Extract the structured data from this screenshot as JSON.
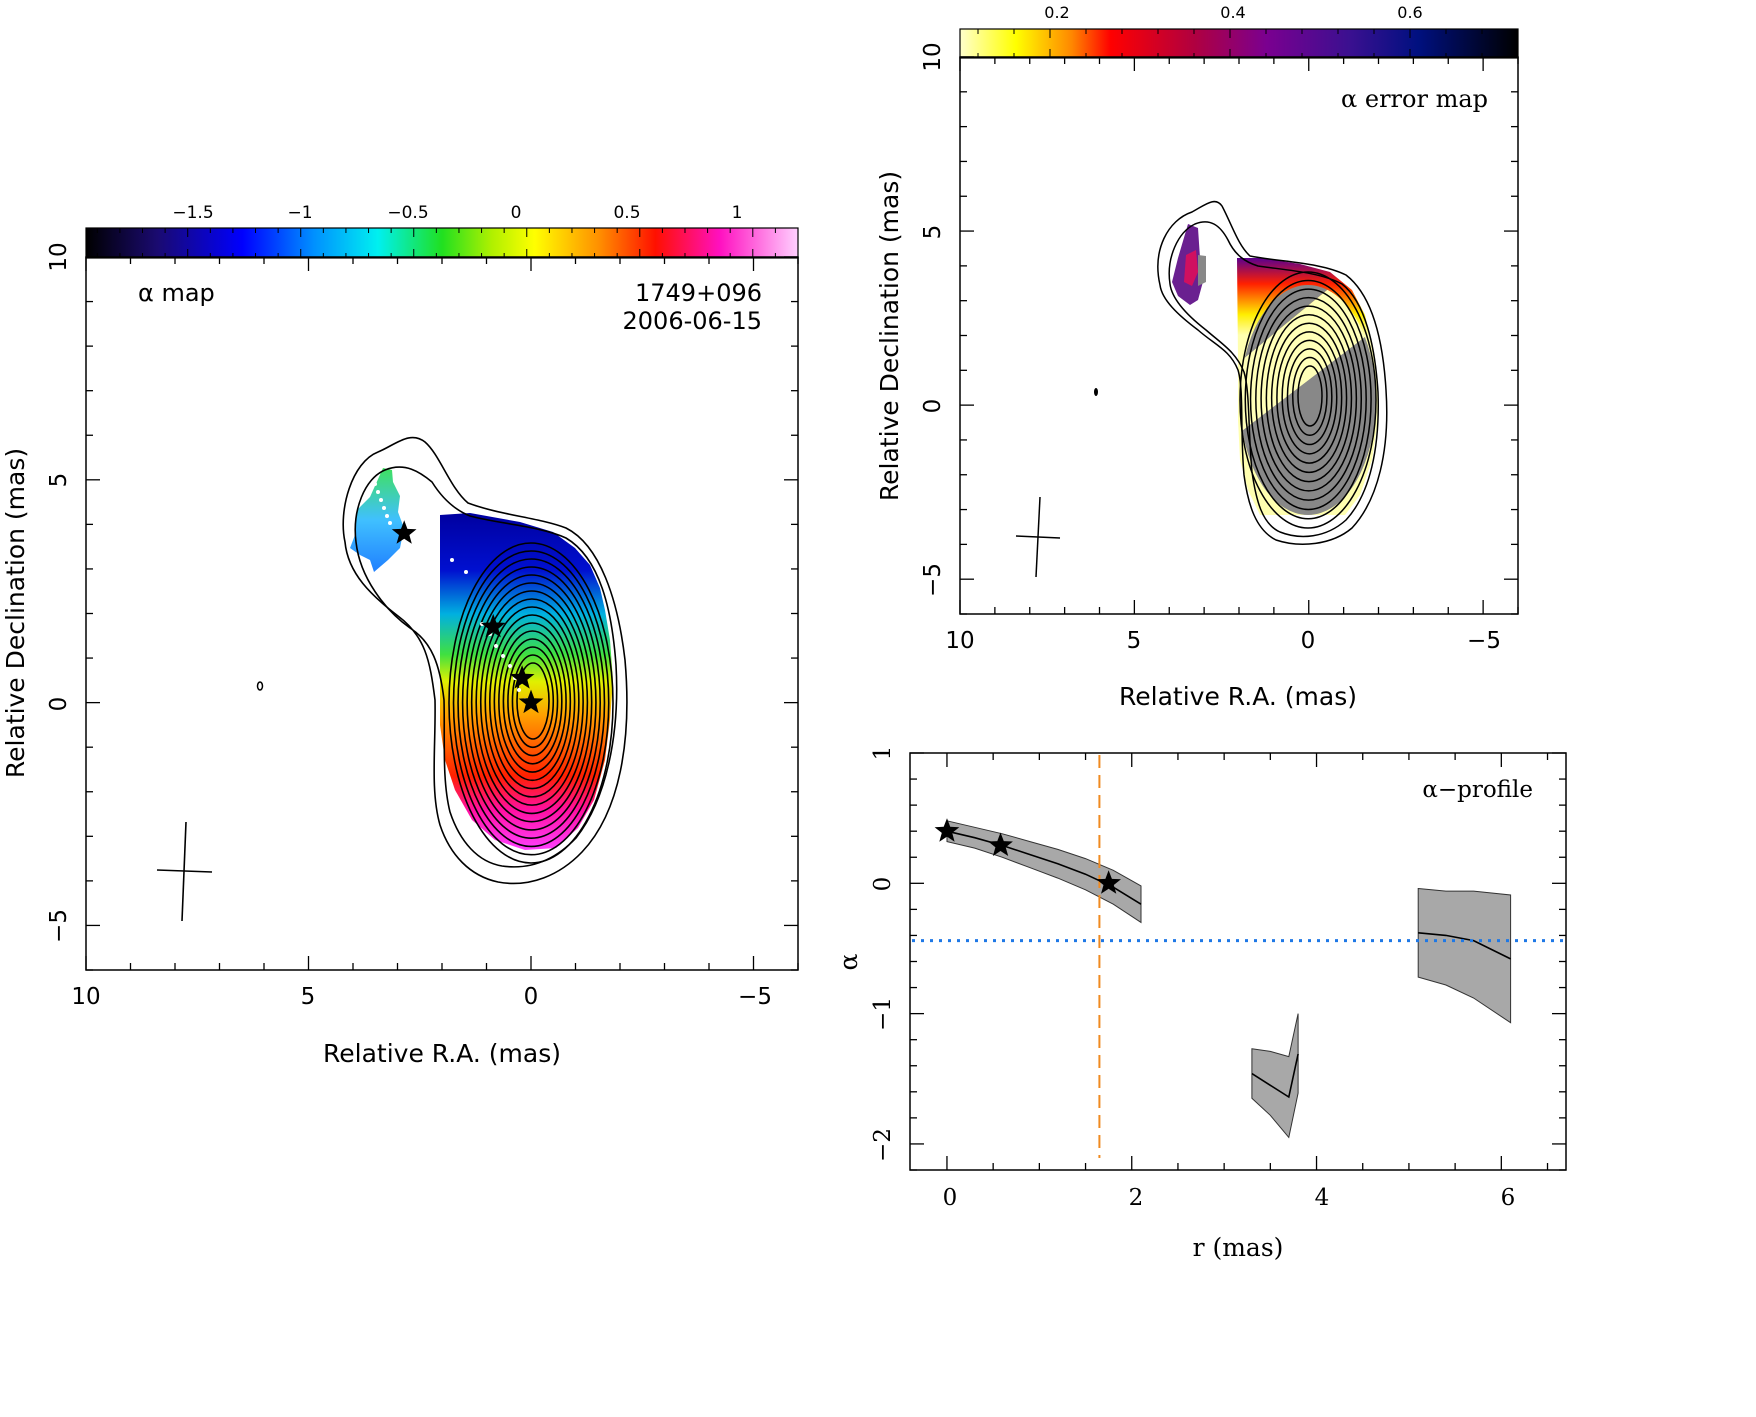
{
  "figure": {
    "panels": [
      "alpha-map",
      "alpha-error-map",
      "alpha-profile"
    ]
  },
  "alpha_map": {
    "label": "α map",
    "source": "1749+096",
    "date": "2006-06-15",
    "xlabel": "Relative R.A. (mas)",
    "ylabel": "Relative Declination (mas)",
    "xticks": [
      "10",
      "5",
      "0",
      "−5"
    ],
    "yticks": [
      "10",
      "5",
      "0",
      "−5"
    ],
    "colorbar_ticks": [
      "−1.5",
      "−1",
      "−0.5",
      "0",
      "0.5",
      "1"
    ]
  },
  "alpha_error_map": {
    "label": "α error map",
    "xlabel": "Relative R.A. (mas)",
    "ylabel": "Relative Declination (mas)",
    "xticks": [
      "10",
      "5",
      "0",
      "−5"
    ],
    "yticks": [
      "10",
      "5",
      "0",
      "−5"
    ],
    "colorbar_ticks": [
      "0.2",
      "0.4",
      "0.6"
    ]
  },
  "chart_data": [
    {
      "type": "heatmap",
      "label": "α map",
      "x_label": "Relative R.A. (mas)",
      "y_label": "Relative Declination (mas)",
      "xlim": [
        10,
        -6
      ],
      "ylim": [
        -6,
        10
      ],
      "colorbar_range": [
        -1.95,
        1.2
      ],
      "colorbar_ticks": [
        -1.5,
        -1,
        -0.5,
        0,
        0.5,
        1
      ],
      "stars": [
        {
          "x": 0,
          "y": 0
        },
        {
          "x": 0.2,
          "y": 0.55
        },
        {
          "x": 0.85,
          "y": 1.7
        },
        {
          "x": 2.85,
          "y": 3.8
        }
      ],
      "contour_levels": 16
    },
    {
      "type": "heatmap",
      "label": "α error map",
      "x_label": "Relative R.A. (mas)",
      "y_label": "Relative Declination (mas)",
      "xlim": [
        10,
        -6
      ],
      "ylim": [
        -6,
        10
      ],
      "colorbar_range": [
        0.1,
        0.72
      ],
      "colorbar_ticks": [
        0.2,
        0.4,
        0.6
      ]
    },
    {
      "type": "line",
      "label": "α−profile",
      "xlabel": "r (mas)",
      "ylabel": "α",
      "xlim": [
        -0.4,
        6.7
      ],
      "ylim": [
        -2.2,
        1
      ],
      "xticks": [
        0,
        2,
        4,
        6
      ],
      "yticks": [
        1,
        0,
        -1,
        -2
      ],
      "reference_lines": {
        "vertical_dashed_x": 1.65,
        "horizontal_dotted_y": -0.44
      },
      "stars": [
        {
          "r": 0,
          "alpha": 0.4
        },
        {
          "r": 0.58,
          "alpha": 0.29
        },
        {
          "r": 1.75,
          "alpha": 0.0
        }
      ],
      "segments": [
        {
          "r": [
            0,
            0.3,
            0.6,
            0.9,
            1.2,
            1.5,
            1.8,
            2.1
          ],
          "alpha": [
            0.4,
            0.35,
            0.29,
            0.22,
            0.15,
            0.07,
            -0.03,
            -0.16
          ],
          "err": [
            0.08,
            0.08,
            0.09,
            0.1,
            0.11,
            0.12,
            0.13,
            0.14
          ]
        },
        {
          "r": [
            3.3,
            3.5,
            3.7,
            3.8
          ],
          "alpha": [
            -1.46,
            -1.55,
            -1.64,
            -1.31
          ],
          "lower": [
            -1.65,
            -1.78,
            -1.95,
            -1.61
          ],
          "upper": [
            -1.27,
            -1.29,
            -1.33,
            -1.0
          ]
        },
        {
          "r": [
            5.1,
            5.4,
            5.7,
            6.1
          ],
          "alpha": [
            -0.38,
            -0.4,
            -0.44,
            -0.58
          ],
          "lower": [
            -0.72,
            -0.78,
            -0.88,
            -1.07
          ],
          "upper": [
            -0.04,
            -0.06,
            -0.06,
            -0.09
          ]
        }
      ]
    }
  ],
  "alpha_profile": {
    "label": "α−profile",
    "xlabel": "r (mas)",
    "ylabel": "α",
    "xticks": [
      "0",
      "2",
      "4",
      "6"
    ],
    "yticks": [
      "1",
      "0",
      "−1",
      "−2"
    ]
  }
}
